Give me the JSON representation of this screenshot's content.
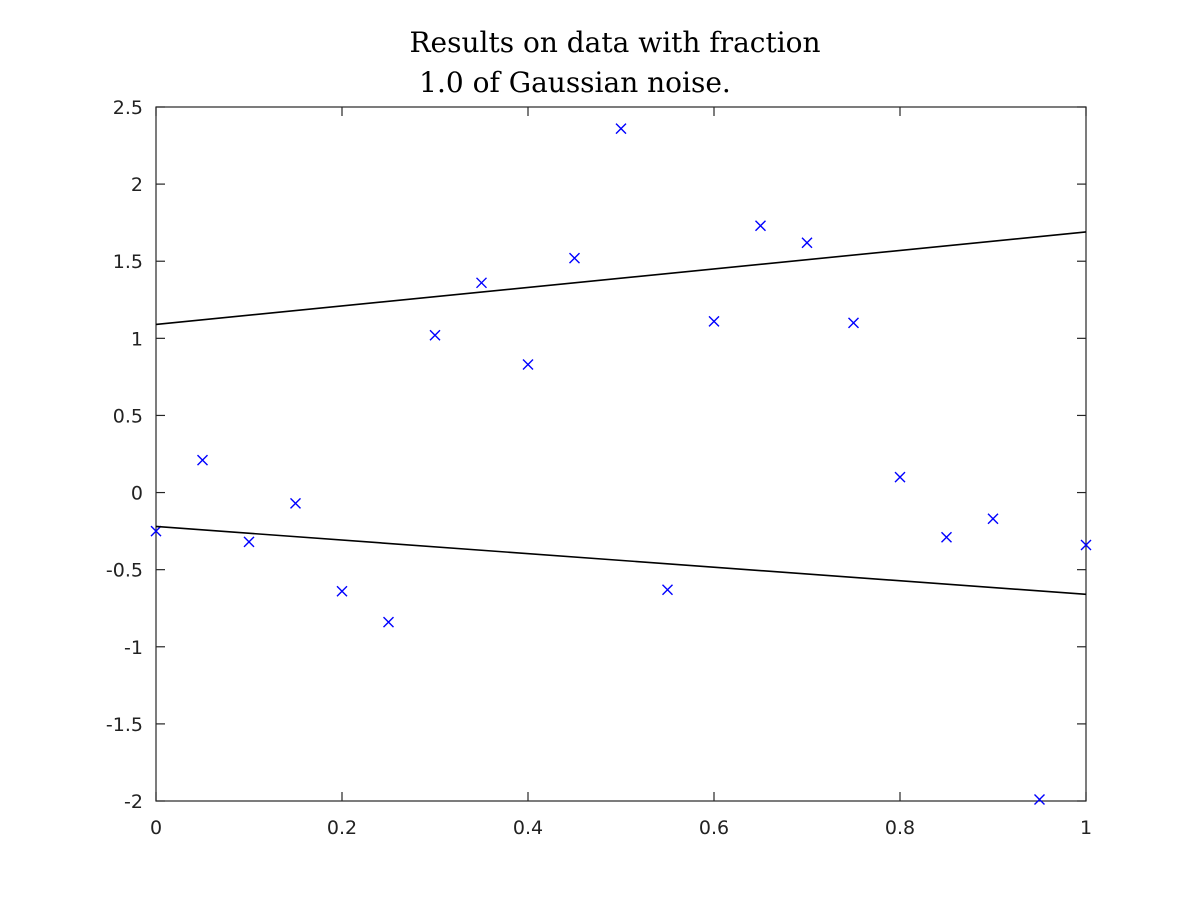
{
  "chart_data": {
    "type": "scatter",
    "title_lines": [
      "Results on data with fraction",
      "1.0 of Gaussian noise."
    ],
    "xlabel": "",
    "ylabel": "",
    "xlim": [
      0,
      1
    ],
    "ylim": [
      -2,
      2.5
    ],
    "x_ticks": [
      0,
      0.2,
      0.4,
      0.6,
      0.8,
      1
    ],
    "x_tick_labels": [
      "0",
      "0.2",
      "0.4",
      "0.6",
      "0.8",
      "1"
    ],
    "y_ticks": [
      -2,
      -1.5,
      -1,
      -0.5,
      0,
      0.5,
      1,
      1.5,
      2,
      2.5
    ],
    "y_tick_labels": [
      "-2",
      "-1.5",
      "-1",
      "-0.5",
      "0",
      "0.5",
      "1",
      "1.5",
      "2",
      "2.5"
    ],
    "grid": false,
    "series": [
      {
        "type": "scatter",
        "marker": "x",
        "color": "#0000ff",
        "x": [
          0,
          0.05,
          0.1,
          0.15,
          0.2,
          0.25,
          0.3,
          0.35,
          0.4,
          0.45,
          0.5,
          0.55,
          0.6,
          0.65,
          0.7,
          0.75,
          0.8,
          0.85,
          0.9,
          0.95,
          1.0
        ],
        "y": [
          -0.25,
          0.21,
          -0.32,
          -0.07,
          -0.64,
          -0.84,
          1.02,
          1.36,
          0.83,
          1.52,
          2.36,
          -0.63,
          1.11,
          1.73,
          1.62,
          1.1,
          0.1,
          -0.29,
          -0.17,
          -1.99,
          -0.34
        ]
      },
      {
        "type": "line",
        "color": "#000000",
        "x": [
          0,
          1
        ],
        "y": [
          1.09,
          1.69
        ]
      },
      {
        "type": "line",
        "color": "#000000",
        "x": [
          0,
          1
        ],
        "y": [
          -0.22,
          -0.66
        ]
      }
    ]
  }
}
